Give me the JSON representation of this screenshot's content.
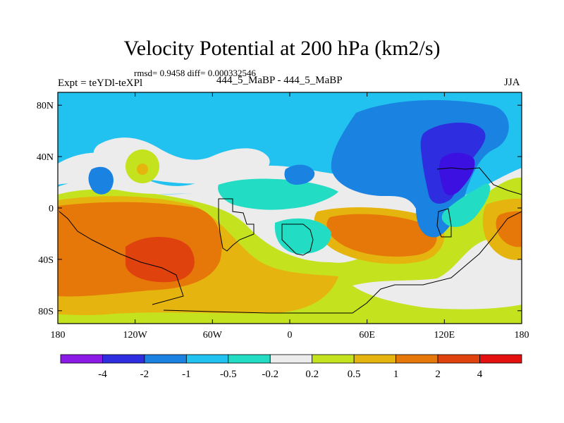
{
  "chart_data": {
    "type": "heatmap",
    "title": "Velocity Potential at 200 hPa (km2/s)",
    "stats_text": "rmsd= 0.9458 diff= 0.000332546",
    "left_label": "Expt = teYDl-teXPl",
    "center_label": "444_5_MaBP - 444_5_MaBP",
    "right_label": "JJA",
    "units": "km2/s",
    "pressure_level_hPa": 200,
    "season": "JJA",
    "rmsd": 0.9458,
    "diff": 0.000332546,
    "x_range": [
      -180,
      180
    ],
    "y_range": [
      -90,
      90
    ],
    "x_ticks": [
      {
        "value": -180,
        "label": "180"
      },
      {
        "value": -120,
        "label": "120W"
      },
      {
        "value": -60,
        "label": "60W"
      },
      {
        "value": 0,
        "label": "0"
      },
      {
        "value": 60,
        "label": "60E"
      },
      {
        "value": 120,
        "label": "120E"
      },
      {
        "value": 180,
        "label": "180"
      }
    ],
    "y_ticks": [
      {
        "value": 80,
        "label": "80N"
      },
      {
        "value": 40,
        "label": "40N"
      },
      {
        "value": 0,
        "label": "0"
      },
      {
        "value": -40,
        "label": "40S"
      },
      {
        "value": -80,
        "label": "80S"
      }
    ],
    "contour_levels": [
      -4,
      -2,
      -1,
      -0.5,
      -0.2,
      0.2,
      0.5,
      1,
      2,
      4
    ],
    "colorbar_labels": [
      "-4",
      "-2",
      "-1",
      "-0.5",
      "-0.2",
      "0.2",
      "0.5",
      "1",
      "2",
      "4"
    ],
    "colors": [
      "#8b1ae6",
      "#2e2ee0",
      "#1a82e0",
      "#22c2f0",
      "#22dcc4",
      "#ececec",
      "#c4e21e",
      "#e6b40e",
      "#e6780a",
      "#e0420e",
      "#e41010"
    ],
    "regions": [
      {
        "name": "north-pacific-americas-band",
        "lon": -95,
        "lat": 62,
        "level": -0.5
      },
      {
        "name": "eurasia-high-latitudes",
        "lon": 80,
        "lat": 70,
        "level": -1
      },
      {
        "name": "east-asia-minimum",
        "lon": 120,
        "lat": 25,
        "level": -4
      },
      {
        "name": "north-america-center",
        "lon": -105,
        "lat": 30,
        "level": 0.5
      },
      {
        "name": "south-pacific-maximum",
        "lon": -110,
        "lat": -40,
        "level": 4
      },
      {
        "name": "indian-ocean-maximum",
        "lon": 55,
        "lat": -20,
        "level": 2
      },
      {
        "name": "southern-ocean-band",
        "lon": 10,
        "lat": -70,
        "level": 0.5
      },
      {
        "name": "southwest-pacific-maximum",
        "lon": 165,
        "lat": -15,
        "level": 2
      }
    ]
  }
}
